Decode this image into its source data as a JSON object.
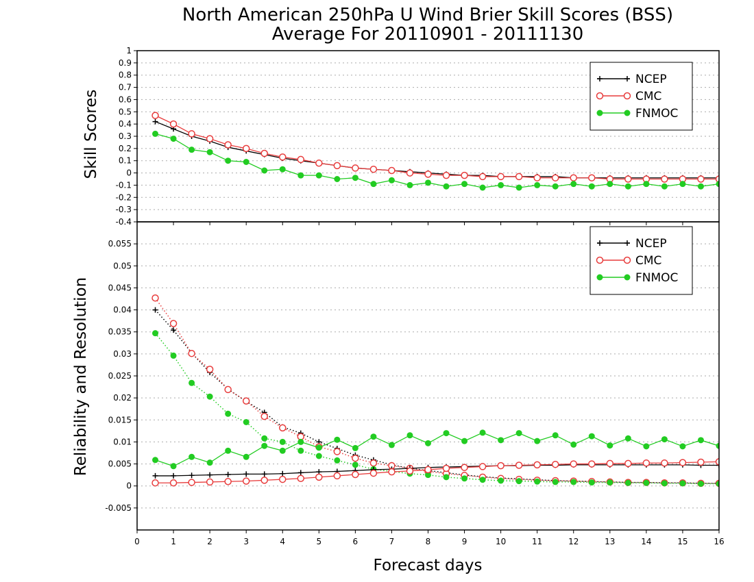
{
  "title_line1": "North American 250hPa U Wind Brier Skill Scores (BSS)",
  "title_line2": "Average For 20110901 - 20111130",
  "xlabel": "Forecast days",
  "colors": {
    "NCEP": "#000000",
    "CMC": "#e83c3c",
    "FNMOC": "#22cc22"
  },
  "chart_data": [
    {
      "type": "line",
      "ylabel": "Skill Scores",
      "ylim": [
        -0.4,
        1
      ],
      "yticks": [
        "1",
        "0.9",
        "0.8",
        "0.7",
        "0.6",
        "0.5",
        "0.4",
        "0.3",
        "0.2",
        "0.1",
        "0",
        "-0.1",
        "-0.2",
        "-0.3",
        "-0.4"
      ],
      "xlim": [
        0,
        16
      ],
      "xticks": [
        "0",
        "1",
        "2",
        "3",
        "4",
        "5",
        "6",
        "7",
        "8",
        "9",
        "10",
        "11",
        "12",
        "13",
        "14",
        "15",
        "16"
      ],
      "grid": true,
      "legend_position": "top-right",
      "legend": [
        "NCEP",
        "CMC",
        "FNMOC"
      ],
      "x": [
        0.5,
        1,
        1.5,
        2,
        2.5,
        3,
        3.5,
        4,
        4.5,
        5,
        5.5,
        6,
        6.5,
        7,
        7.5,
        8,
        8.5,
        9,
        9.5,
        10,
        10.5,
        11,
        11.5,
        12,
        12.5,
        13,
        13.5,
        14,
        14.5,
        15,
        15.5,
        16
      ],
      "series": [
        {
          "name": "NCEP",
          "marker": "plus",
          "style": "solid",
          "values": [
            0.42,
            0.36,
            0.3,
            0.26,
            0.21,
            0.18,
            0.15,
            0.12,
            0.1,
            0.08,
            0.06,
            0.04,
            0.03,
            0.02,
            0.01,
            0.0,
            -0.01,
            -0.02,
            -0.02,
            -0.03,
            -0.03,
            -0.03,
            -0.03,
            -0.04,
            -0.04,
            -0.04,
            -0.04,
            -0.04,
            -0.04,
            -0.04,
            -0.04,
            -0.04
          ]
        },
        {
          "name": "CMC",
          "marker": "circle",
          "style": "solid",
          "values": [
            0.47,
            0.4,
            0.32,
            0.28,
            0.23,
            0.2,
            0.16,
            0.13,
            0.11,
            0.08,
            0.06,
            0.04,
            0.03,
            0.02,
            0.0,
            -0.01,
            -0.02,
            -0.02,
            -0.03,
            -0.03,
            -0.03,
            -0.04,
            -0.04,
            -0.04,
            -0.04,
            -0.05,
            -0.05,
            -0.05,
            -0.05,
            -0.05,
            -0.05,
            -0.05
          ]
        },
        {
          "name": "FNMOC",
          "marker": "dot",
          "style": "solid",
          "values": [
            0.32,
            0.28,
            0.19,
            0.17,
            0.1,
            0.09,
            0.02,
            0.03,
            -0.02,
            -0.02,
            -0.05,
            -0.04,
            -0.09,
            -0.06,
            -0.1,
            -0.08,
            -0.11,
            -0.09,
            -0.12,
            -0.1,
            -0.12,
            -0.1,
            -0.11,
            -0.09,
            -0.11,
            -0.09,
            -0.11,
            -0.09,
            -0.11,
            -0.09,
            -0.11,
            -0.09
          ]
        }
      ]
    },
    {
      "type": "line",
      "ylabel": "Reliability and Resolution",
      "ylim": [
        -0.01,
        0.06
      ],
      "yticks": [
        "0.055",
        "0.05",
        "0.045",
        "0.04",
        "0.035",
        "0.03",
        "0.025",
        "0.02",
        "0.015",
        "0.01",
        "0.005",
        "0",
        "-0.005"
      ],
      "xlim": [
        0,
        16
      ],
      "xticks": [
        "0",
        "1",
        "2",
        "3",
        "4",
        "5",
        "6",
        "7",
        "8",
        "9",
        "10",
        "11",
        "12",
        "13",
        "14",
        "15",
        "16"
      ],
      "grid": true,
      "legend_position": "top-right",
      "legend": [
        "NCEP",
        "CMC",
        "FNMOC"
      ],
      "x": [
        0.5,
        1,
        1.5,
        2,
        2.5,
        3,
        3.5,
        4,
        4.5,
        5,
        5.5,
        6,
        6.5,
        7,
        7.5,
        8,
        8.5,
        9,
        9.5,
        10,
        10.5,
        11,
        11.5,
        12,
        12.5,
        13,
        13.5,
        14,
        14.5,
        15,
        15.5,
        16
      ],
      "series": [
        {
          "name": "NCEP",
          "metric": "resolution",
          "marker": "plus",
          "style": "dotted",
          "values": [
            0.04,
            0.0354,
            0.0302,
            0.0258,
            0.022,
            0.0192,
            0.0167,
            0.0134,
            0.012,
            0.01,
            0.0085,
            0.007,
            0.0059,
            0.0048,
            0.004,
            0.0035,
            0.003,
            0.0025,
            0.0021,
            0.0018,
            0.0016,
            0.0014,
            0.0012,
            0.0011,
            0.001,
            0.0009,
            0.0008,
            0.0008,
            0.0007,
            0.0007,
            0.0006,
            0.0006
          ]
        },
        {
          "name": "CMC",
          "metric": "resolution",
          "marker": "circle",
          "style": "dotted",
          "values": [
            0.0427,
            0.0369,
            0.0301,
            0.0265,
            0.0219,
            0.0193,
            0.0158,
            0.0132,
            0.0112,
            0.0089,
            0.0078,
            0.0063,
            0.0052,
            0.0046,
            0.004,
            0.0033,
            0.0028,
            0.0024,
            0.002,
            0.0017,
            0.0015,
            0.0013,
            0.0012,
            0.0011,
            0.001,
            0.0009,
            0.0008,
            0.0008,
            0.0007,
            0.0007,
            0.0006,
            0.0006
          ]
        },
        {
          "name": "FNMOC",
          "metric": "resolution",
          "marker": "dot",
          "style": "dotted",
          "values": [
            0.0347,
            0.0296,
            0.0234,
            0.0203,
            0.0164,
            0.0145,
            0.0108,
            0.01,
            0.008,
            0.0068,
            0.0058,
            0.0048,
            0.0038,
            0.0033,
            0.0028,
            0.0025,
            0.002,
            0.0017,
            0.0014,
            0.0012,
            0.0011,
            0.001,
            0.0009,
            0.0009,
            0.0008,
            0.0008,
            0.0007,
            0.0007,
            0.0006,
            0.0006,
            0.0005,
            0.0005
          ]
        },
        {
          "name": "NCEP",
          "metric": "reliability",
          "marker": "plus",
          "style": "solid",
          "values": [
            0.0023,
            0.0023,
            0.0024,
            0.0025,
            0.0026,
            0.0027,
            0.0027,
            0.0028,
            0.003,
            0.0032,
            0.0033,
            0.0035,
            0.0037,
            0.0038,
            0.004,
            0.0042,
            0.0043,
            0.0044,
            0.0045,
            0.0046,
            0.0046,
            0.0047,
            0.0047,
            0.0048,
            0.0048,
            0.0048,
            0.0048,
            0.0048,
            0.0048,
            0.0048,
            0.0047,
            0.0047
          ]
        },
        {
          "name": "CMC",
          "metric": "reliability",
          "marker": "circle",
          "style": "solid",
          "values": [
            0.0007,
            0.0007,
            0.0008,
            0.0009,
            0.001,
            0.0011,
            0.0013,
            0.0015,
            0.0017,
            0.002,
            0.0023,
            0.0026,
            0.0029,
            0.0032,
            0.0034,
            0.0037,
            0.004,
            0.0042,
            0.0044,
            0.0046,
            0.0047,
            0.0048,
            0.0049,
            0.005,
            0.005,
            0.0051,
            0.0051,
            0.0052,
            0.0052,
            0.0053,
            0.0054,
            0.0055
          ]
        },
        {
          "name": "FNMOC",
          "metric": "reliability",
          "marker": "dot",
          "style": "solid",
          "values": [
            0.0059,
            0.0045,
            0.0066,
            0.0053,
            0.008,
            0.0066,
            0.0091,
            0.008,
            0.01,
            0.0087,
            0.0105,
            0.0086,
            0.0112,
            0.0093,
            0.0115,
            0.0097,
            0.012,
            0.0102,
            0.0121,
            0.0104,
            0.012,
            0.0102,
            0.0115,
            0.0094,
            0.0113,
            0.0092,
            0.0108,
            0.009,
            0.0106,
            0.009,
            0.0104,
            0.0091
          ]
        }
      ]
    }
  ]
}
